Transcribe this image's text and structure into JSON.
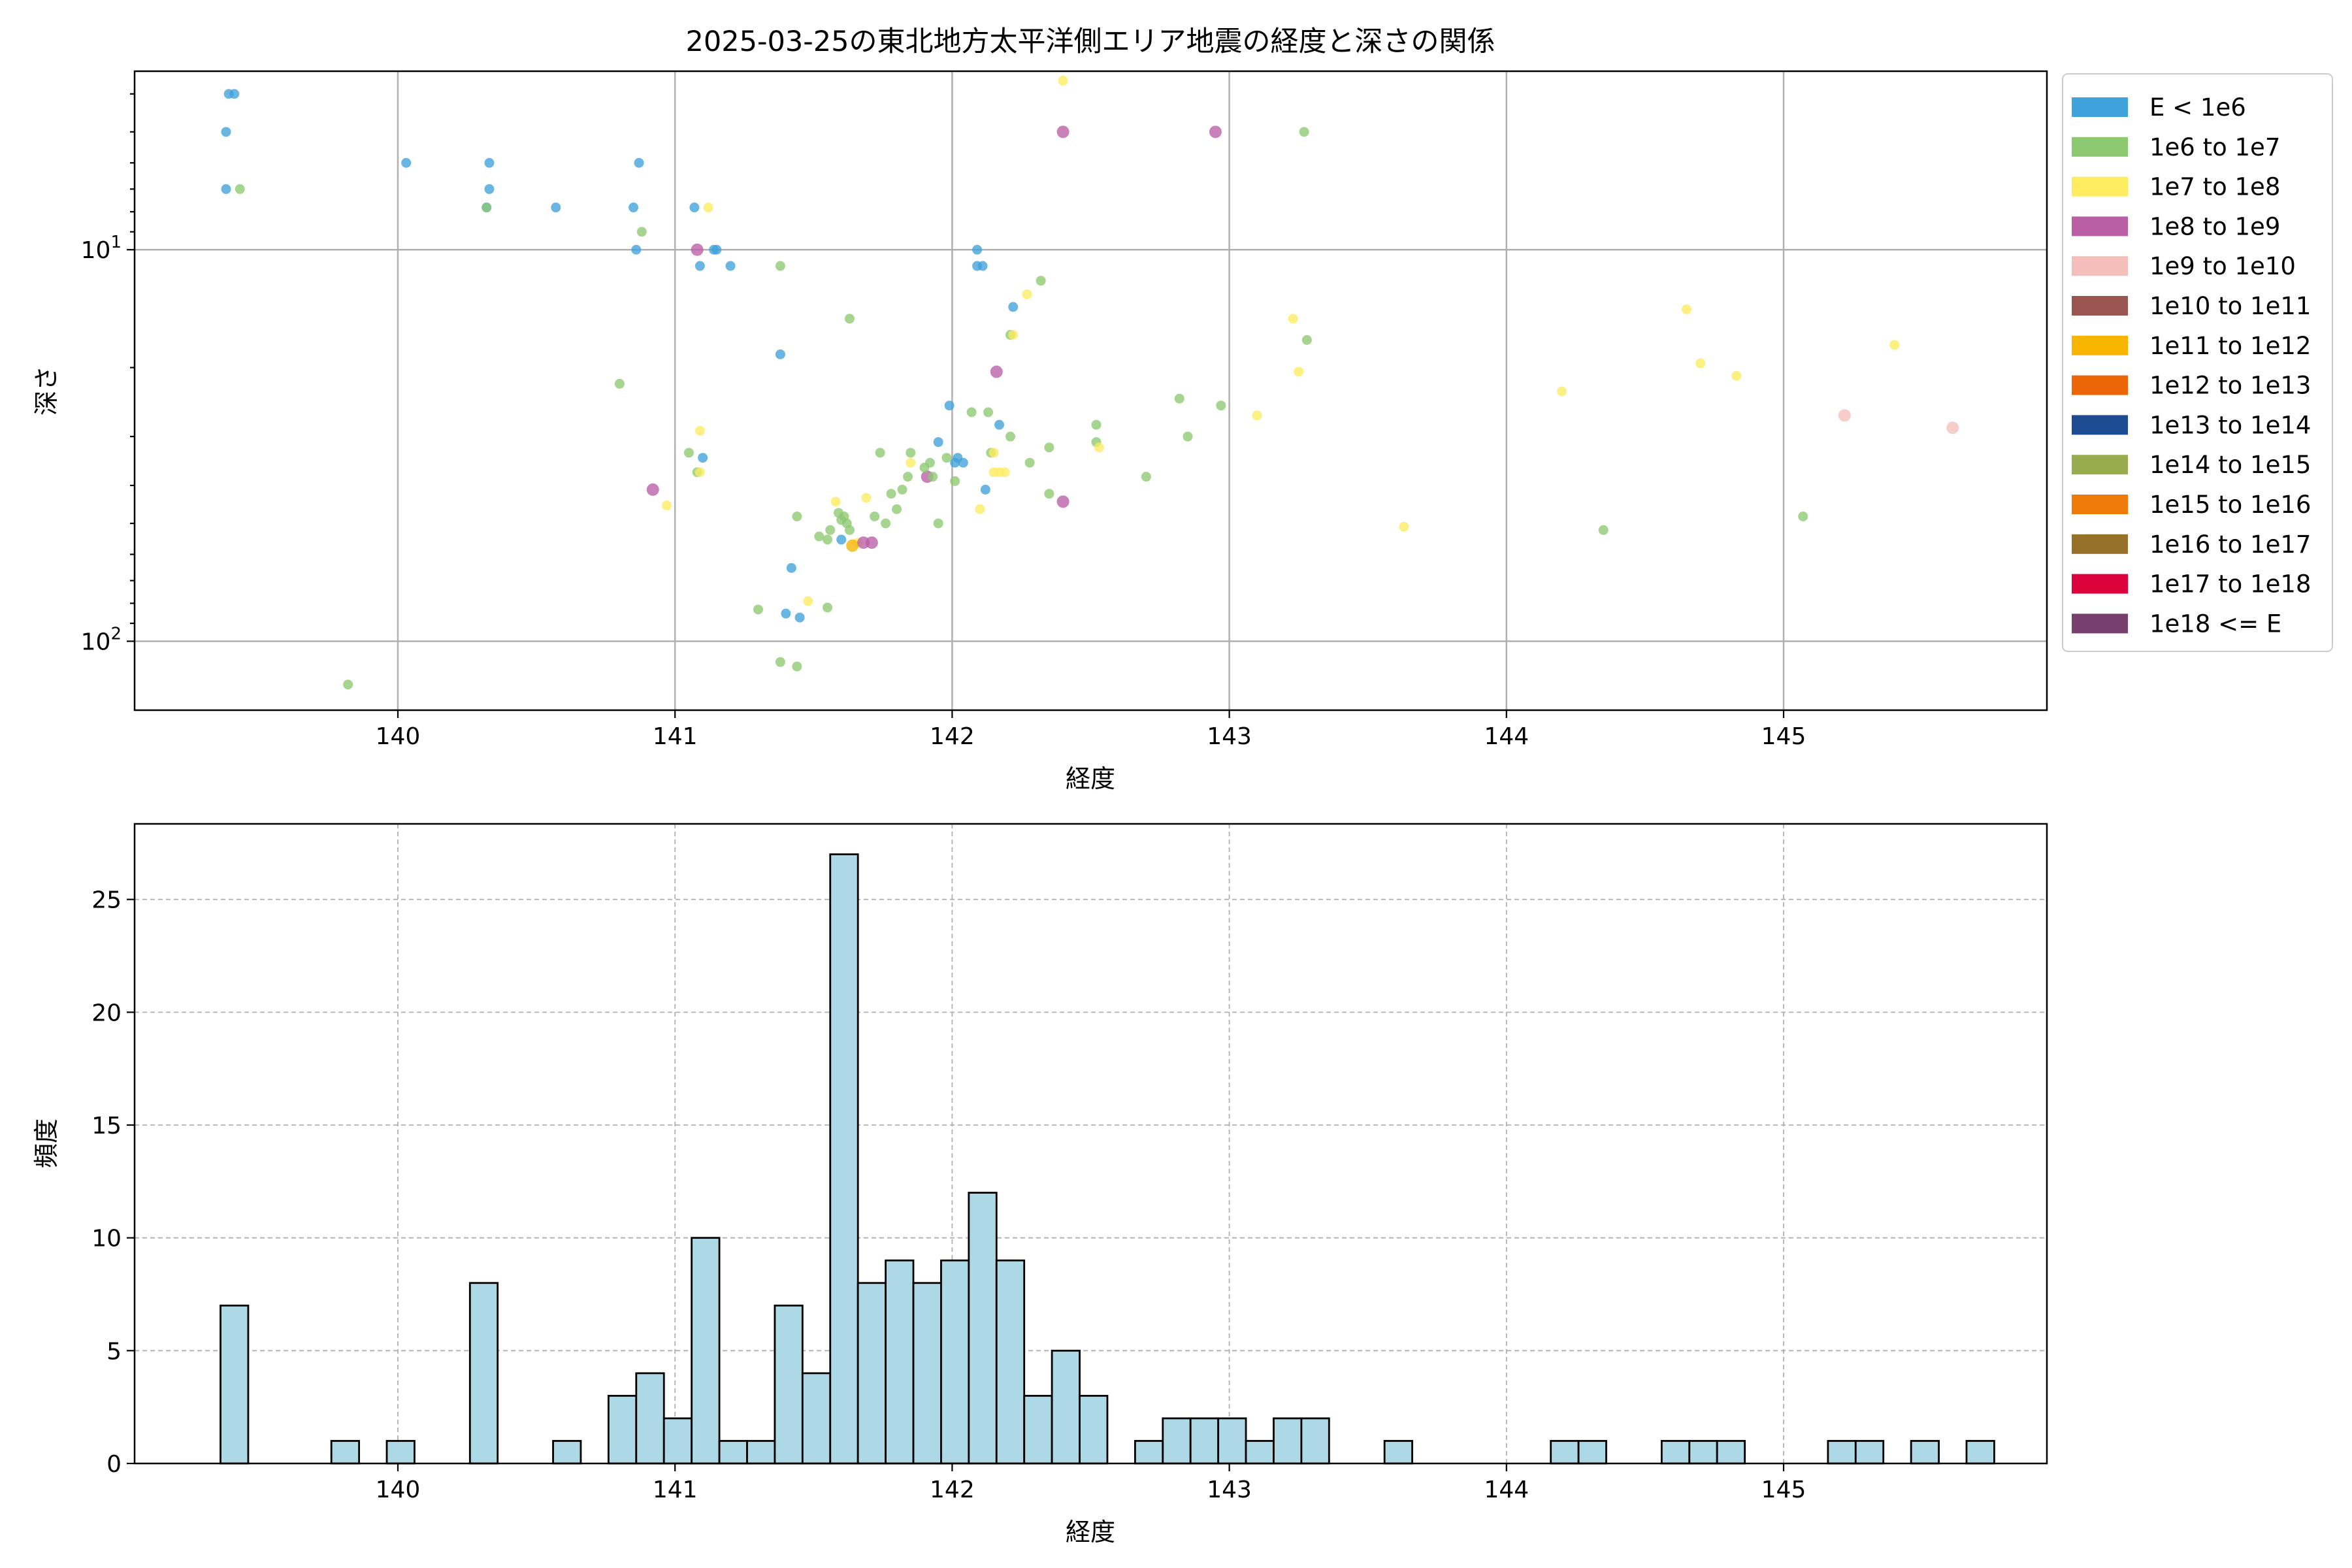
{
  "chart_data": [
    {
      "type": "scatter",
      "title": "2025-03-25の東北地方太平洋側エリア地震の経度と深さの関係",
      "xlabel": "経度",
      "ylabel": "深さ",
      "xlim": [
        139.05,
        145.95
      ],
      "ylim": [
        150,
        3.5
      ],
      "yscale": "log",
      "y_inverted": true,
      "grid": true,
      "legend_position": "outside-right",
      "xticks": [
        "140",
        "141",
        "142",
        "143",
        "144",
        "145"
      ],
      "yticks": [
        {
          "value": 10,
          "label": "10",
          "sup": "1"
        },
        {
          "value": 100,
          "label": "10",
          "sup": "2"
        }
      ],
      "legend": [
        {
          "label": "E < 1e6",
          "color": "#3fa2da"
        },
        {
          "label": "1e6 to 1e7",
          "color": "#8dc971"
        },
        {
          "label": "1e7 to 1e8",
          "color": "#fdec60"
        },
        {
          "label": "1e8 to 1e9",
          "color": "#b85fa5"
        },
        {
          "label": "1e9 to 1e10",
          "color": "#f4bfba"
        },
        {
          "label": "1e10 to 1e11",
          "color": "#9a5550"
        },
        {
          "label": "1e11 to 1e12",
          "color": "#f7b500"
        },
        {
          "label": "1e12 to 1e13",
          "color": "#ec6607"
        },
        {
          "label": "1e13 to 1e14",
          "color": "#1d4b91"
        },
        {
          "label": "1e14 to 1e15",
          "color": "#99ac4d"
        },
        {
          "label": "1e15 to 1e16",
          "color": "#ee7a0a"
        },
        {
          "label": "1e16 to 1e17",
          "color": "#97702a"
        },
        {
          "label": "1e17 to 1e18",
          "color": "#dc033c"
        },
        {
          "label": "1e18 <= E",
          "color": "#773f6e"
        }
      ],
      "points": [
        [
          139.39,
          4,
          0
        ],
        [
          139.41,
          4,
          0
        ],
        [
          139.38,
          5,
          0
        ],
        [
          139.38,
          7,
          0
        ],
        [
          139.43,
          7,
          1
        ],
        [
          140.03,
          6,
          0
        ],
        [
          140.33,
          6,
          0
        ],
        [
          140.33,
          7,
          0
        ],
        [
          140.32,
          7.8,
          0
        ],
        [
          140.32,
          7.8,
          1
        ],
        [
          140.57,
          7.8,
          0
        ],
        [
          140.87,
          6,
          0
        ],
        [
          140.85,
          7.8,
          0
        ],
        [
          140.88,
          9,
          1
        ],
        [
          140.86,
          10,
          0
        ],
        [
          141.07,
          7.8,
          0
        ],
        [
          141.12,
          7.8,
          2
        ],
        [
          141.09,
          11,
          0
        ],
        [
          141.08,
          10,
          3
        ],
        [
          141.15,
          10,
          0
        ],
        [
          141.14,
          10,
          0
        ],
        [
          141.2,
          11,
          0
        ],
        [
          141.38,
          11,
          1
        ],
        [
          141.63,
          15,
          1
        ],
        [
          141.38,
          18.5,
          0
        ],
        [
          140.8,
          22,
          1
        ],
        [
          141.09,
          29,
          2
        ],
        [
          141.05,
          33,
          1
        ],
        [
          141.1,
          34,
          0
        ],
        [
          141.08,
          37,
          1
        ],
        [
          141.09,
          37,
          2
        ],
        [
          140.92,
          41,
          3
        ],
        [
          140.97,
          45,
          2
        ],
        [
          141.44,
          48,
          1
        ],
        [
          141.52,
          54,
          1
        ],
        [
          141.56,
          52,
          1
        ],
        [
          141.6,
          55,
          0
        ],
        [
          141.55,
          55,
          1
        ],
        [
          141.59,
          47,
          1
        ],
        [
          141.6,
          49,
          1
        ],
        [
          141.61,
          48,
          1
        ],
        [
          141.62,
          50,
          1
        ],
        [
          141.63,
          52,
          1
        ],
        [
          141.58,
          44,
          2
        ],
        [
          141.66,
          56,
          2
        ],
        [
          141.64,
          57,
          6
        ],
        [
          141.68,
          56,
          3
        ],
        [
          141.71,
          56,
          3
        ],
        [
          141.72,
          48,
          1
        ],
        [
          141.69,
          43,
          2
        ],
        [
          141.76,
          50,
          1
        ],
        [
          141.78,
          42,
          1
        ],
        [
          141.8,
          46,
          1
        ],
        [
          141.82,
          41,
          1
        ],
        [
          141.84,
          38,
          1
        ],
        [
          141.85,
          35,
          2
        ],
        [
          141.85,
          33,
          1
        ],
        [
          141.74,
          33,
          1
        ],
        [
          141.91,
          38,
          3
        ],
        [
          141.93,
          38,
          1
        ],
        [
          141.9,
          36,
          1
        ],
        [
          141.92,
          35,
          1
        ],
        [
          141.95,
          31,
          0
        ],
        [
          141.95,
          50,
          1
        ],
        [
          141.98,
          34,
          1
        ],
        [
          142.01,
          35,
          0
        ],
        [
          142.01,
          39,
          1
        ],
        [
          142.04,
          35,
          0
        ],
        [
          142.02,
          34,
          0
        ],
        [
          141.99,
          25,
          0
        ],
        [
          142.07,
          26,
          1
        ],
        [
          142.1,
          46,
          2
        ],
        [
          142.12,
          41,
          0
        ],
        [
          142.13,
          26,
          1
        ],
        [
          142.14,
          33,
          1
        ],
        [
          142.15,
          33,
          2
        ],
        [
          142.15,
          37,
          2
        ],
        [
          142.17,
          37,
          2
        ],
        [
          142.19,
          37,
          2
        ],
        [
          142.17,
          28,
          0
        ],
        [
          142.21,
          30,
          1
        ],
        [
          142.16,
          20.5,
          3
        ],
        [
          142.09,
          10,
          0
        ],
        [
          142.09,
          11,
          0
        ],
        [
          142.11,
          11,
          0
        ],
        [
          142.22,
          14,
          0
        ],
        [
          142.21,
          16.5,
          1
        ],
        [
          142.22,
          16.5,
          2
        ],
        [
          142.27,
          13,
          2
        ],
        [
          142.32,
          12,
          1
        ],
        [
          142.28,
          35,
          1
        ],
        [
          142.35,
          32,
          1
        ],
        [
          142.35,
          42,
          1
        ],
        [
          142.4,
          44,
          3
        ],
        [
          142.52,
          28,
          1
        ],
        [
          142.52,
          31,
          1
        ],
        [
          142.53,
          32,
          2
        ],
        [
          142.4,
          3.7,
          2
        ],
        [
          142.4,
          5,
          3
        ],
        [
          142.7,
          38,
          1
        ],
        [
          142.82,
          24,
          1
        ],
        [
          142.85,
          30,
          1
        ],
        [
          142.97,
          25,
          1
        ],
        [
          142.95,
          5,
          3
        ],
        [
          143.1,
          26.5,
          2
        ],
        [
          143.23,
          15,
          2
        ],
        [
          143.28,
          17,
          1
        ],
        [
          143.25,
          20.5,
          2
        ],
        [
          143.27,
          5,
          1
        ],
        [
          143.63,
          51,
          2
        ],
        [
          141.42,
          65,
          0
        ],
        [
          141.45,
          87,
          0
        ],
        [
          141.4,
          85,
          0
        ],
        [
          141.3,
          83,
          1
        ],
        [
          141.48,
          79,
          2
        ],
        [
          141.55,
          82,
          1
        ],
        [
          141.38,
          113,
          1
        ],
        [
          141.44,
          116,
          1
        ],
        [
          139.82,
          129,
          1
        ],
        [
          144.2,
          23,
          2
        ],
        [
          144.35,
          52,
          1
        ],
        [
          144.65,
          14.2,
          2
        ],
        [
          144.7,
          19.5,
          2
        ],
        [
          144.83,
          21,
          2
        ],
        [
          145.07,
          48,
          1
        ],
        [
          145.22,
          26.5,
          4
        ],
        [
          145.4,
          17.5,
          2
        ],
        [
          145.61,
          28.5,
          4
        ]
      ]
    },
    {
      "type": "bar",
      "subtype": "histogram",
      "xlabel": "経度",
      "ylabel": "頻度",
      "xlim": [
        139.05,
        145.95
      ],
      "ylim": [
        0,
        28.35
      ],
      "grid": true,
      "bar_color": "#add8e6",
      "edge_color": "#000000",
      "xticks": [
        "140",
        "141",
        "142",
        "143",
        "144",
        "145"
      ],
      "yticks": [
        "0",
        "5",
        "10",
        "15",
        "20",
        "25"
      ],
      "bin_start": 139.36,
      "bin_width": 0.1,
      "counts": [
        7,
        0,
        0,
        0,
        1,
        0,
        1,
        0,
        0,
        8,
        0,
        0,
        1,
        0,
        3,
        4,
        2,
        10,
        1,
        1,
        7,
        4,
        27,
        8,
        9,
        8,
        9,
        12,
        9,
        3,
        5,
        3,
        0,
        1,
        2,
        2,
        2,
        1,
        2,
        2,
        0,
        0,
        1,
        0,
        0,
        0,
        0,
        0,
        1,
        1,
        0,
        0,
        1,
        1,
        1,
        0,
        0,
        0,
        1,
        1,
        0,
        1,
        0,
        1
      ]
    }
  ]
}
